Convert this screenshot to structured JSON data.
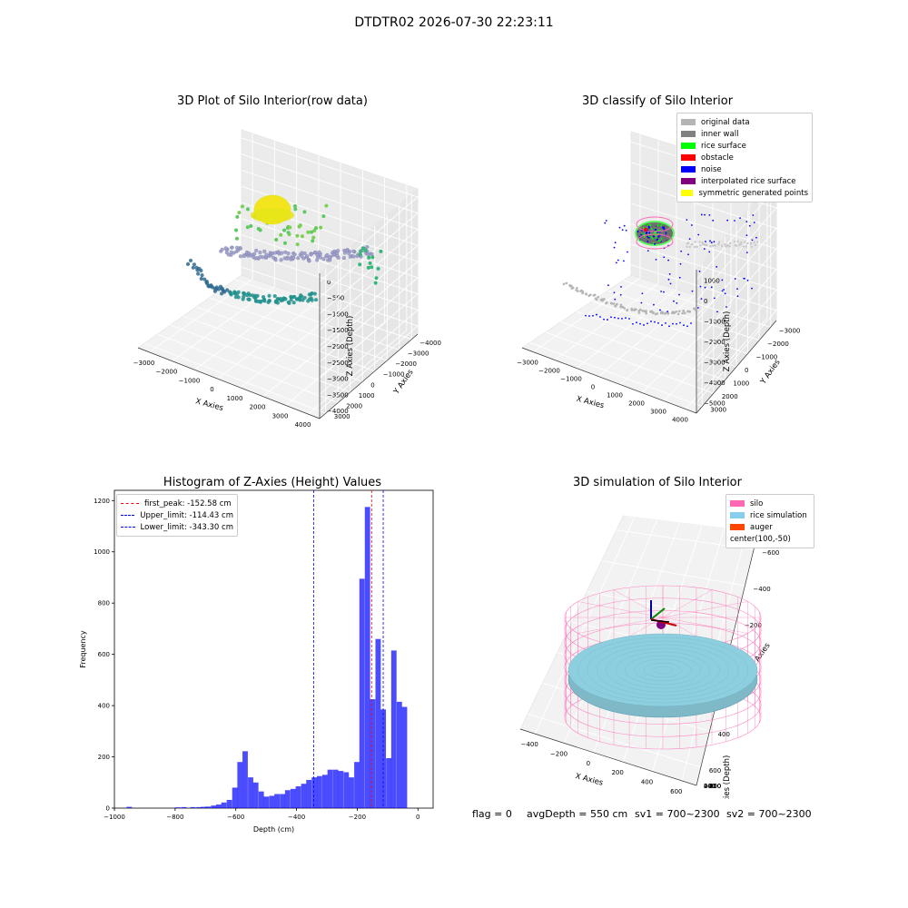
{
  "header": {
    "title": "DTDTR02 2026-07-30 22:23:11"
  },
  "status": {
    "flag": "flag = 0",
    "avg_depth": "avgDepth = 550 cm",
    "sv1": "sv1 = 700~2300",
    "sv2": "sv2 = 700~2300"
  },
  "chart_data": [
    {
      "type": "scatter",
      "title": "3D Plot of Silo Interior(row data)",
      "xlabel": "X Axies",
      "ylabel": "Y Axies",
      "zlabel": "Z Axies (Depth)",
      "xticks": [
        "−3000",
        "−2000",
        "−1000",
        "0",
        "1000",
        "2000",
        "3000",
        "4000"
      ],
      "yticks": [
        "3000",
        "2000",
        "1000",
        "0",
        "−1000",
        "−2000",
        "−3000",
        "−4000"
      ],
      "zticks": [
        "0",
        "−500",
        "−1000",
        "−1500",
        "−2000",
        "−2500",
        "−3000",
        "−3500",
        "−4000"
      ],
      "colormap": "viridis"
    },
    {
      "type": "scatter",
      "title": "3D classify of Silo Interior",
      "xlabel": "X Axies",
      "ylabel": "Y Axies",
      "zlabel": "Z Axies (Depth)",
      "xticks": [
        "−3000",
        "−2000",
        "−1000",
        "0",
        "1000",
        "2000",
        "3000",
        "4000"
      ],
      "yticks": [
        "3000",
        "2000",
        "1000",
        "0",
        "−1000",
        "−2000",
        "−3000"
      ],
      "zticks": [
        "1000",
        "0",
        "−1000",
        "−2000",
        "−3000",
        "−4000",
        "−5000"
      ],
      "legend_position": "top-right",
      "legend": [
        {
          "label": "original data",
          "color": "#b4b4b4"
        },
        {
          "label": "inner wall",
          "color": "#808080"
        },
        {
          "label": "rice surface",
          "color": "#00ff00"
        },
        {
          "label": "obstacle",
          "color": "#ff0000"
        },
        {
          "label": "noise",
          "color": "#0000ff"
        },
        {
          "label": "interpolated rice surface",
          "color": "#800080"
        },
        {
          "label": "symmetric generated points",
          "color": "#ffff00"
        }
      ]
    },
    {
      "type": "bar",
      "title": "Histogram of Z-Axies (Height) Values",
      "xlabel": "Depth (cm)",
      "ylabel": "Frequency",
      "xlim": [
        -1000,
        50
      ],
      "ylim": [
        0,
        1240
      ],
      "xticks": [
        -1000,
        -800,
        -600,
        -400,
        -200,
        0
      ],
      "xtick_labels": [
        "−1000",
        "−800",
        "−600",
        "−400",
        "−200",
        "0"
      ],
      "yticks": [
        0,
        200,
        400,
        600,
        800,
        1000,
        1200
      ],
      "bar_color": "#0000ff",
      "bin_width": 17.5,
      "bins": [
        [
          -960,
          5
        ],
        [
          -800,
          3
        ],
        [
          -780,
          4
        ],
        [
          -750,
          4
        ],
        [
          -730,
          4
        ],
        [
          -715,
          5
        ],
        [
          -700,
          6
        ],
        [
          -682,
          10
        ],
        [
          -665,
          14
        ],
        [
          -648,
          22
        ],
        [
          -630,
          32
        ],
        [
          -612,
          80
        ],
        [
          -595,
          180
        ],
        [
          -578,
          222
        ],
        [
          -560,
          120
        ],
        [
          -543,
          100
        ],
        [
          -525,
          65
        ],
        [
          -508,
          45
        ],
        [
          -490,
          48
        ],
        [
          -473,
          55
        ],
        [
          -455,
          55
        ],
        [
          -438,
          70
        ],
        [
          -420,
          75
        ],
        [
          -403,
          85
        ],
        [
          -385,
          95
        ],
        [
          -368,
          110
        ],
        [
          -350,
          120
        ],
        [
          -333,
          125
        ],
        [
          -315,
          130
        ],
        [
          -298,
          150
        ],
        [
          -280,
          150
        ],
        [
          -263,
          145
        ],
        [
          -245,
          140
        ],
        [
          -228,
          120
        ],
        [
          -210,
          180
        ],
        [
          -193,
          895
        ],
        [
          -175,
          1175
        ],
        [
          -158,
          425
        ],
        [
          -140,
          660
        ],
        [
          -123,
          385
        ],
        [
          -105,
          195
        ],
        [
          -88,
          615
        ],
        [
          -70,
          415
        ],
        [
          -53,
          395
        ]
      ],
      "lines": [
        {
          "label": "first_peak: -152.58 cm",
          "x": -152.58,
          "color": "#ff0000"
        },
        {
          "label": "Upper_limit: -114.43 cm",
          "x": -114.43,
          "color": "#0000ff"
        },
        {
          "label": "Lower_limit: -343.30 cm",
          "x": -343.3,
          "color": "#0000ff"
        }
      ],
      "legend_position": "top-left"
    },
    {
      "type": "scatter",
      "title": "3D simulation of Silo Interior",
      "xlabel": "X Axies",
      "ylabel": "Y Axies",
      "zlabel": "Z Axies (Depth)",
      "xticks": [
        "−400",
        "−200",
        "0",
        "200",
        "400",
        "600"
      ],
      "yticks": [
        "600",
        "400",
        "200",
        "0",
        "−200",
        "−400",
        "−600"
      ],
      "zticks": [
        "400",
        "200",
        "0",
        "−200",
        "−400",
        "−600",
        "−800"
      ],
      "legend_position": "top-right",
      "legend": [
        {
          "label": "silo",
          "color": "#ff69b4"
        },
        {
          "label": "rice simulation",
          "color": "#87ceeb"
        },
        {
          "label": "auger",
          "color": "#ff4500"
        },
        {
          "label": "center(100,-50)",
          "color": ""
        }
      ]
    }
  ]
}
